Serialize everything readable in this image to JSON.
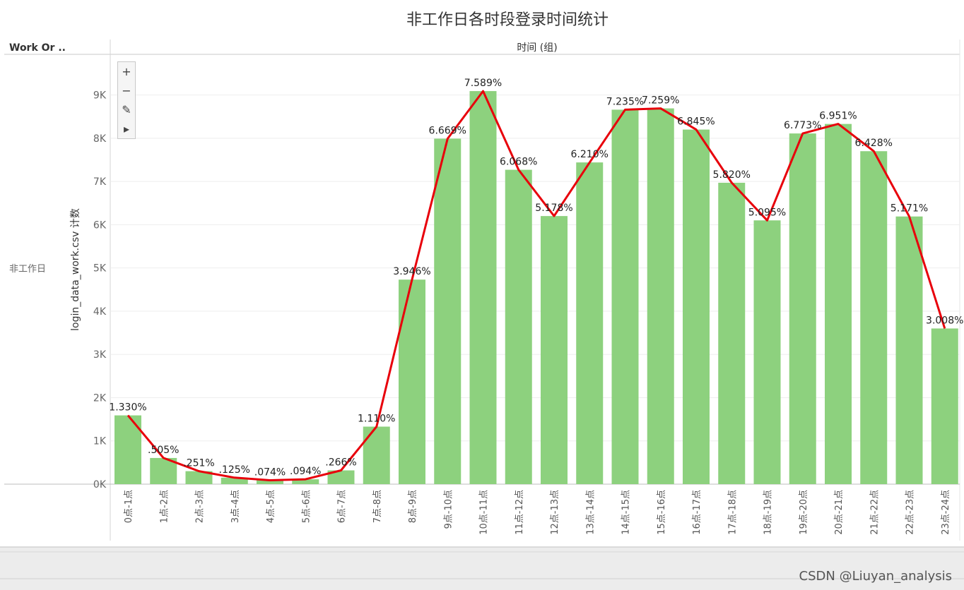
{
  "header": {
    "title": "非工作日各时段登录时间统计",
    "row_header": "Work Or ..",
    "column_header": "时间 (组)",
    "row_label": "非工作日"
  },
  "toolbar": {
    "zoom_in": "+",
    "zoom_out": "−",
    "pin": "✎",
    "play": "▸"
  },
  "watermark": "CSDN @Liuyan_analysis",
  "chart_data": {
    "type": "bar",
    "ylabel": "login_data_work.csv 计数",
    "xlabel": "",
    "ylim": [
      0,
      9600
    ],
    "yticks": [
      0,
      1000,
      2000,
      3000,
      4000,
      5000,
      6000,
      7000,
      8000,
      9000
    ],
    "ytick_labels": [
      "0K",
      "1K",
      "2K",
      "3K",
      "4K",
      "5K",
      "6K",
      "7K",
      "8K",
      "9K"
    ],
    "grid": true,
    "categories": [
      "0点-1点",
      "1点-2点",
      "2点-3点",
      "3点-4点",
      "4点-5点",
      "5点-6点",
      "6点-7点",
      "7点-8点",
      "8点-9点",
      "9点-10点",
      "10点-11点",
      "11点-12点",
      "12点-13点",
      "13点-14点",
      "14点-15点",
      "15点-16点",
      "16点-17点",
      "17点-18点",
      "18点-19点",
      "19点-20点",
      "20点-21点",
      "21点-22点",
      "22点-23点",
      "23点-24点"
    ],
    "values": [
      1590,
      605,
      300,
      150,
      90,
      112,
      318,
      1330,
      4730,
      7990,
      9090,
      7270,
      6200,
      7440,
      8660,
      8690,
      8200,
      6970,
      6100,
      8110,
      8330,
      7700,
      6190,
      3600
    ],
    "labels": [
      "1.330%",
      ".505%",
      ".251%",
      ".125%",
      ".074%",
      ".094%",
      ".266%",
      "1.110%",
      "3.946%",
      "6.669%",
      "7.589%",
      "6.068%",
      "5.178%",
      "6.210%",
      "7.235%",
      "7.259%",
      "6.845%",
      "5.820%",
      "5.095%",
      "6.773%",
      "6.951%",
      "6.428%",
      "5.171%",
      "3.008%"
    ],
    "bar_color": "#8dd17e",
    "line_color": "#e8000b"
  }
}
